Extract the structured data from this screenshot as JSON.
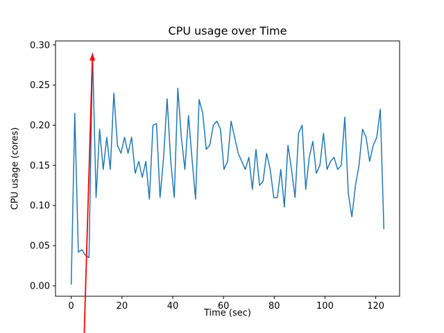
{
  "chart_data": {
    "type": "line",
    "title": "CPU usage over Time",
    "xlabel": "Time (sec)",
    "ylabel": "CPU usage (cores)",
    "line_color": "#1f77b4",
    "annotation_color": "#ff0000",
    "grid": false,
    "legend": false,
    "xlim": [
      -6.2,
      129.4
    ],
    "ylim": [
      -0.013,
      0.305
    ],
    "x_ticks": [
      0,
      20,
      40,
      60,
      80,
      100,
      120
    ],
    "x_tick_labels": [
      "0",
      "20",
      "40",
      "60",
      "80",
      "100",
      "120"
    ],
    "y_ticks": [
      0.0,
      0.05,
      0.1,
      0.15,
      0.2,
      0.25,
      0.3
    ],
    "y_tick_labels": [
      "0.00",
      "0.05",
      "0.10",
      "0.15",
      "0.20",
      "0.25",
      "0.30"
    ],
    "x": [
      0,
      1.4,
      2.8,
      4.2,
      5.6,
      7,
      8.4,
      9.8,
      11.2,
      12.6,
      14,
      15.4,
      16.8,
      18.2,
      19.6,
      21,
      22.4,
      23.8,
      25.2,
      26.6,
      28,
      29.4,
      30.8,
      32.2,
      33.6,
      35,
      36.4,
      37.8,
      39.2,
      40.6,
      42,
      43.4,
      44.8,
      46.2,
      47.6,
      49,
      50.4,
      51.8,
      53.2,
      54.6,
      56,
      57.4,
      58.8,
      60.2,
      61.6,
      63,
      64.4,
      65.8,
      67.2,
      68.6,
      70,
      71.4,
      72.8,
      74.2,
      75.6,
      77,
      78.4,
      79.8,
      81.2,
      82.6,
      84,
      85.4,
      86.8,
      88.2,
      89.6,
      91,
      92.4,
      93.8,
      95.2,
      96.6,
      98,
      99.4,
      100.8,
      102.2,
      103.6,
      105,
      106.4,
      107.8,
      109.2,
      110.6,
      112,
      113.4,
      114.8,
      116.2,
      117.6,
      119,
      120.4,
      121.8,
      123.2
    ],
    "y": [
      0.002,
      0.215,
      0.042,
      0.045,
      0.038,
      0.035,
      0.29,
      0.11,
      0.195,
      0.145,
      0.185,
      0.145,
      0.24,
      0.175,
      0.165,
      0.185,
      0.165,
      0.185,
      0.14,
      0.155,
      0.135,
      0.155,
      0.108,
      0.2,
      0.202,
      0.11,
      0.16,
      0.233,
      0.155,
      0.11,
      0.246,
      0.185,
      0.145,
      0.212,
      0.158,
      0.108,
      0.232,
      0.215,
      0.17,
      0.175,
      0.2,
      0.205,
      0.195,
      0.145,
      0.155,
      0.205,
      0.185,
      0.165,
      0.155,
      0.145,
      0.16,
      0.12,
      0.17,
      0.125,
      0.13,
      0.165,
      0.145,
      0.11,
      0.11,
      0.145,
      0.098,
      0.175,
      0.145,
      0.11,
      0.19,
      0.2,
      0.12,
      0.16,
      0.18,
      0.14,
      0.15,
      0.19,
      0.145,
      0.155,
      0.16,
      0.145,
      0.15,
      0.21,
      0.115,
      0.086,
      0.125,
      0.15,
      0.195,
      0.185,
      0.155,
      0.175,
      0.185,
      0.22,
      0.071
    ],
    "annotation": {
      "type": "arrow",
      "color": "#ff0000",
      "target_x": 8.4,
      "target_y": 0.29,
      "tail": "below-axes"
    }
  }
}
